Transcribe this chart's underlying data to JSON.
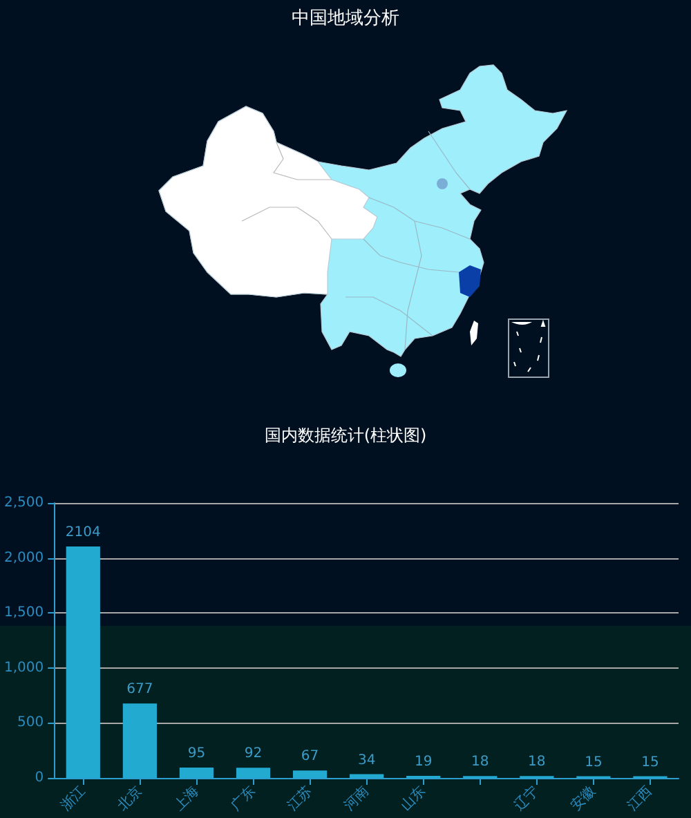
{
  "chart_data": [
    {
      "type": "other",
      "title": "中国地域分析"
    },
    {
      "type": "bar",
      "title": "国内数据统计(柱状图)",
      "categories": [
        "浙江",
        "北京",
        "上海",
        "广东",
        "江苏",
        "河南",
        "山东",
        null,
        "辽宁",
        "安徽",
        "江西"
      ],
      "values": [
        2104,
        677,
        95,
        92,
        67,
        34,
        19,
        18,
        18,
        15,
        15
      ],
      "color": "#22aad0",
      "ylim": [
        0,
        2500
      ],
      "yticks": [
        0,
        500,
        {
          "value": 1000,
          "label": "1,000"
        },
        {
          "value": 1500,
          "label": "1,500"
        },
        {
          "value": 2000,
          "label": "2,000"
        },
        {
          "value": 2500,
          "label": "2,500"
        }
      ],
      "grid": "y",
      "data_labels": true
    }
  ]
}
